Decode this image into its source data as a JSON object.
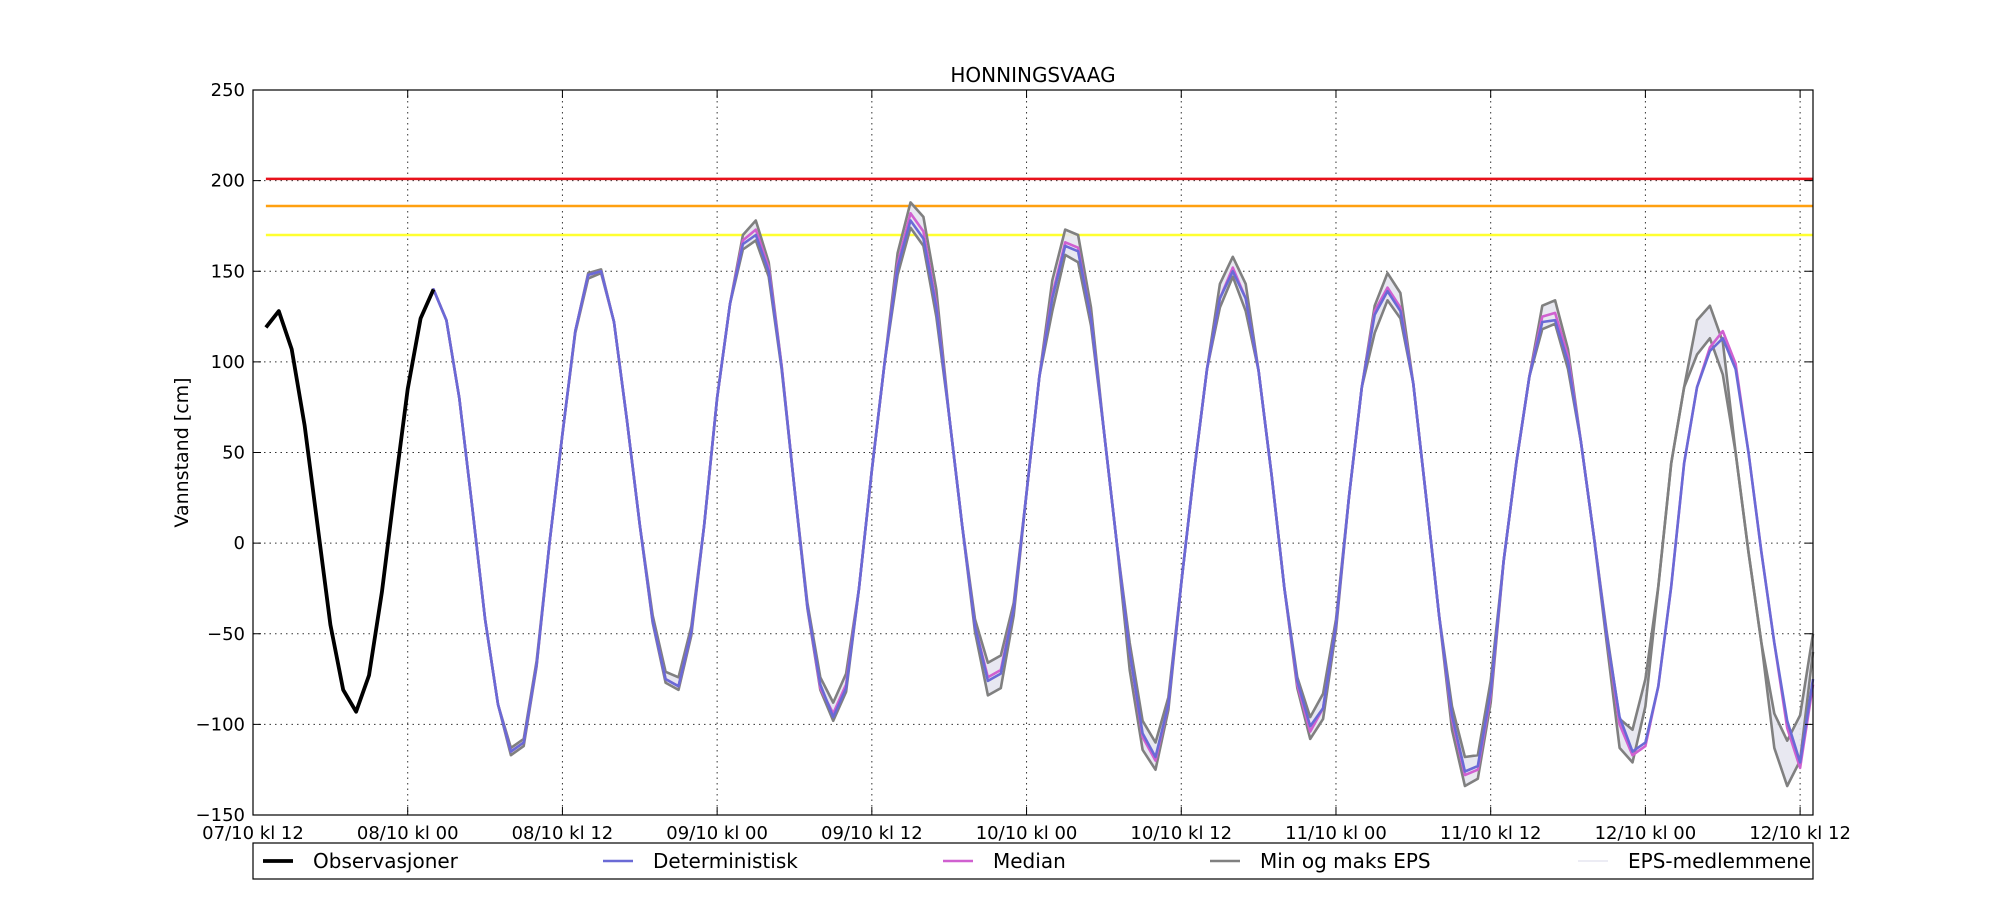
{
  "chart_data": {
    "type": "line",
    "title": "HONNINGSVAAG",
    "xlabel": "",
    "ylabel": "Vannstand [cm]",
    "xlim": [
      0,
      121
    ],
    "ylim": [
      -150,
      250
    ],
    "yticks": [
      -150,
      -100,
      -50,
      0,
      50,
      100,
      150,
      200,
      250
    ],
    "ytick_labels": [
      "−150",
      "−100",
      "−50",
      "0",
      "50",
      "100",
      "150",
      "200",
      "250"
    ],
    "xticks": [
      0,
      12,
      24,
      36,
      48,
      60,
      72,
      84,
      96,
      108,
      120
    ],
    "xtick_labels": [
      "07/10 kl 12",
      "08/10 kl 00",
      "08/10 kl 12",
      "09/10 kl 00",
      "09/10 kl 12",
      "10/10 kl 00",
      "10/10 kl 12",
      "11/10 kl 00",
      "11/10 kl 12",
      "12/10 kl 00",
      "12/10 kl 12"
    ],
    "grid": true,
    "legend_position": "bottom",
    "thresholds": [
      {
        "value": 201,
        "color": "#e8121c"
      },
      {
        "value": 186,
        "color": "#ffa010"
      },
      {
        "value": 170,
        "color": "#ffff30"
      }
    ],
    "series": [
      {
        "name": "Observasjoner",
        "color": "#000000",
        "x": [
          1,
          2,
          3,
          4,
          5,
          6,
          7,
          8,
          9,
          10,
          11,
          12,
          13,
          14
        ],
        "y": [
          119,
          128,
          107,
          65,
          10,
          -45,
          -81,
          -93,
          -73,
          -27,
          30,
          85,
          124,
          140
        ]
      },
      {
        "name": "Deterministisk",
        "color": "#6a6ad6",
        "x": [
          13,
          14,
          15,
          16,
          17,
          18,
          19,
          20,
          21,
          22,
          23,
          24,
          25,
          26,
          27,
          28,
          29,
          30,
          31,
          32,
          33,
          34,
          35,
          36,
          37,
          38,
          39,
          40,
          41,
          42,
          43,
          44,
          45,
          46,
          47,
          48,
          49,
          50,
          51,
          52,
          53,
          54,
          55,
          56,
          57,
          58,
          59,
          60,
          61,
          62,
          63,
          64,
          65,
          66,
          67,
          68,
          69,
          70,
          71,
          72,
          73,
          74,
          75,
          76,
          77,
          78,
          79,
          80,
          81,
          82,
          83,
          84,
          85,
          86,
          87,
          88,
          89,
          90,
          91,
          92,
          93,
          94,
          95,
          96,
          97,
          98,
          99,
          100,
          101,
          102,
          103,
          104,
          105,
          106,
          107,
          108,
          109,
          110,
          111,
          112,
          113,
          114,
          115,
          116,
          117,
          118,
          119,
          120,
          121
        ],
        "y": [
          124,
          140,
          123,
          80,
          20,
          -42,
          -89,
          -115,
          -110,
          -67,
          0,
          60,
          117,
          148,
          150,
          122,
          68,
          10,
          -43,
          -75,
          -79,
          -49,
          10,
          80,
          132,
          165,
          170,
          150,
          97,
          30,
          -35,
          -78,
          -96,
          -80,
          -25,
          40,
          100,
          152,
          178,
          168,
          130,
          70,
          10,
          -46,
          -76,
          -72,
          -36,
          28,
          92,
          135,
          164,
          161,
          124,
          62,
          0,
          -60,
          -105,
          -118,
          -89,
          -22,
          40,
          96,
          135,
          150,
          135,
          95,
          38,
          -25,
          -76,
          -101,
          -91,
          -45,
          25,
          86,
          126,
          139,
          128,
          88,
          25,
          -40,
          -95,
          -126,
          -123,
          -82,
          -10,
          45,
          92,
          122,
          123,
          100,
          56,
          4,
          -51,
          -96,
          -115,
          -110,
          -79,
          -24,
          44,
          86,
          106,
          113,
          96,
          50,
          -5,
          -55,
          -98,
          -121,
          -75
        ]
      },
      {
        "name": "Median",
        "color": "#d060d0",
        "x": [
          13,
          14,
          15,
          16,
          17,
          18,
          19,
          20,
          21,
          22,
          23,
          24,
          25,
          26,
          27,
          28,
          29,
          30,
          31,
          32,
          33,
          34,
          35,
          36,
          37,
          38,
          39,
          40,
          41,
          42,
          43,
          44,
          45,
          46,
          47,
          48,
          49,
          50,
          51,
          52,
          53,
          54,
          55,
          56,
          57,
          58,
          59,
          60,
          61,
          62,
          63,
          64,
          65,
          66,
          67,
          68,
          69,
          70,
          71,
          72,
          73,
          74,
          75,
          76,
          77,
          78,
          79,
          80,
          81,
          82,
          83,
          84,
          85,
          86,
          87,
          88,
          89,
          90,
          91,
          92,
          93,
          94,
          95,
          96,
          97,
          98,
          99,
          100,
          101,
          102,
          103,
          104,
          105,
          106,
          107,
          108,
          109,
          110,
          111,
          112,
          113,
          114,
          115,
          116,
          117,
          118,
          119,
          120,
          121
        ],
        "y": [
          124,
          140,
          123,
          80,
          20,
          -42,
          -89,
          -115,
          -110,
          -67,
          0,
          60,
          117,
          148,
          150,
          122,
          68,
          10,
          -43,
          -75,
          -79,
          -49,
          10,
          80,
          132,
          167,
          173,
          152,
          98,
          30,
          -35,
          -80,
          -94,
          -78,
          -25,
          40,
          100,
          154,
          182,
          172,
          132,
          70,
          10,
          -46,
          -74,
          -70,
          -36,
          28,
          92,
          137,
          166,
          163,
          124,
          62,
          0,
          -60,
          -107,
          -120,
          -89,
          -22,
          40,
          96,
          135,
          152,
          135,
          95,
          38,
          -25,
          -78,
          -104,
          -91,
          -45,
          25,
          86,
          128,
          141,
          130,
          88,
          25,
          -40,
          -97,
          -128,
          -125,
          -84,
          -10,
          45,
          92,
          125,
          127,
          103,
          56,
          4,
          -51,
          -100,
          -117,
          -112,
          -79,
          -24,
          44,
          86,
          108,
          117,
          99,
          50,
          -5,
          -55,
          -102,
          -124,
          -78
        ]
      },
      {
        "name": "Min og maks EPS",
        "color": "#808080",
        "x": [
          13,
          14,
          15,
          16,
          17,
          18,
          19,
          20,
          21,
          22,
          23,
          24,
          25,
          26,
          27,
          28,
          29,
          30,
          31,
          32,
          33,
          34,
          35,
          36,
          37,
          38,
          39,
          40,
          41,
          42,
          43,
          44,
          45,
          46,
          47,
          48,
          49,
          50,
          51,
          52,
          53,
          54,
          55,
          56,
          57,
          58,
          59,
          60,
          61,
          62,
          63,
          64,
          65,
          66,
          67,
          68,
          69,
          70,
          71,
          72,
          73,
          74,
          75,
          76,
          77,
          78,
          79,
          80,
          81,
          82,
          83,
          84,
          85,
          86,
          87,
          88,
          89,
          90,
          91,
          92,
          93,
          94,
          95,
          96,
          97,
          98,
          99,
          100,
          101,
          102,
          103,
          104,
          105,
          106,
          107,
          108,
          109,
          110,
          111,
          112,
          113,
          114,
          115,
          116,
          117,
          118,
          119,
          120,
          121
        ],
        "y_max": [
          124,
          140,
          123,
          80,
          20,
          -42,
          -89,
          -113,
          -108,
          -65,
          0,
          60,
          117,
          149,
          151,
          122,
          68,
          10,
          -40,
          -71,
          -74,
          -46,
          10,
          80,
          132,
          170,
          178,
          155,
          98,
          30,
          -33,
          -74,
          -88,
          -72,
          -25,
          40,
          100,
          160,
          188,
          180,
          140,
          70,
          10,
          -42,
          -66,
          -62,
          -33,
          28,
          92,
          145,
          173,
          170,
          130,
          62,
          0,
          -55,
          -98,
          -110,
          -85,
          -22,
          40,
          96,
          143,
          158,
          143,
          95,
          38,
          -25,
          -74,
          -96,
          -83,
          -42,
          25,
          86,
          131,
          149,
          138,
          88,
          25,
          -40,
          -90,
          -118,
          -117,
          -76,
          -10,
          45,
          92,
          131,
          134,
          107,
          56,
          4,
          -49,
          -97,
          -103,
          -75,
          -24,
          44,
          86,
          123,
          131,
          111,
          50,
          -5,
          -55,
          -94,
          -109,
          -95,
          -50
        ],
        "y_min": [
          124,
          140,
          123,
          80,
          20,
          -42,
          -89,
          -117,
          -112,
          -68,
          0,
          60,
          116,
          146,
          149,
          122,
          68,
          10,
          -44,
          -77,
          -81,
          -51,
          10,
          80,
          132,
          162,
          167,
          147,
          96,
          30,
          -36,
          -81,
          -98,
          -82,
          -25,
          40,
          100,
          148,
          174,
          164,
          125,
          70,
          10,
          -49,
          -84,
          -80,
          -40,
          28,
          92,
          128,
          159,
          155,
          120,
          62,
          0,
          -70,
          -114,
          -125,
          -92,
          -22,
          40,
          96,
          130,
          147,
          128,
          95,
          38,
          -25,
          -80,
          -108,
          -97,
          -48,
          25,
          86,
          116,
          134,
          124,
          88,
          25,
          -40,
          -103,
          -134,
          -130,
          -88,
          -10,
          45,
          92,
          118,
          121,
          96,
          56,
          4,
          -55,
          -113,
          -121,
          -90,
          -24,
          44,
          86,
          104,
          113,
          93,
          50,
          -5,
          -55,
          -113,
          -134,
          -120,
          -60
        ]
      },
      {
        "name": "EPS-medlemmene",
        "color": "#e6e6f0"
      }
    ]
  }
}
